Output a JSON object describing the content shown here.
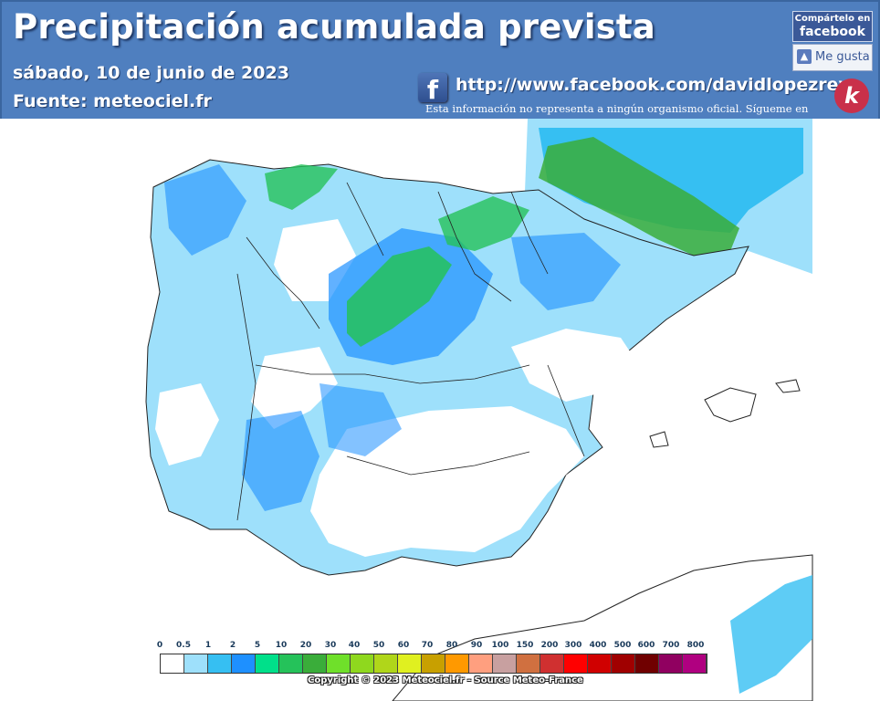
{
  "header": {
    "title": "Precipitación acumulada prevista",
    "date": "sábado, 10 de junio de 2023",
    "source": "Fuente:  meteociel.fr",
    "facebook_url": "http://www.facebook.com/davidlopezrey",
    "disclaimer": "Esta información no representa a ningún organismo oficial. Sígueme en",
    "fb_icon_letter": "f"
  },
  "share": {
    "line1": "Compártelo en",
    "line2": "facebook",
    "like_label": "Me gusta"
  },
  "logo": {
    "glyph": "k",
    "color": "#c9304a"
  },
  "legend": {
    "ticks": [
      "0",
      "0.5",
      "1",
      "2",
      "5",
      "10",
      "20",
      "30",
      "40",
      "50",
      "60",
      "70",
      "80",
      "90",
      "100",
      "150",
      "200",
      "300",
      "400",
      "500",
      "600",
      "700",
      "800"
    ],
    "colors": [
      "#ffffff",
      "#9ee0fb",
      "#36bff2",
      "#1e90ff",
      "#00e08a",
      "#25c25a",
      "#3aad3a",
      "#6fe02a",
      "#8fd81e",
      "#b0d61a",
      "#e0f020",
      "#c8a000",
      "#ff9900",
      "#ff9f7f",
      "#c8a0a0",
      "#d07040",
      "#d03030",
      "#ff0000",
      "#d00000",
      "#a00000",
      "#700000",
      "#900060",
      "#b00080",
      "#e000e0"
    ]
  },
  "copyright": "Copyright © 2023 Meteociel.fr - Source Meteo-France"
}
